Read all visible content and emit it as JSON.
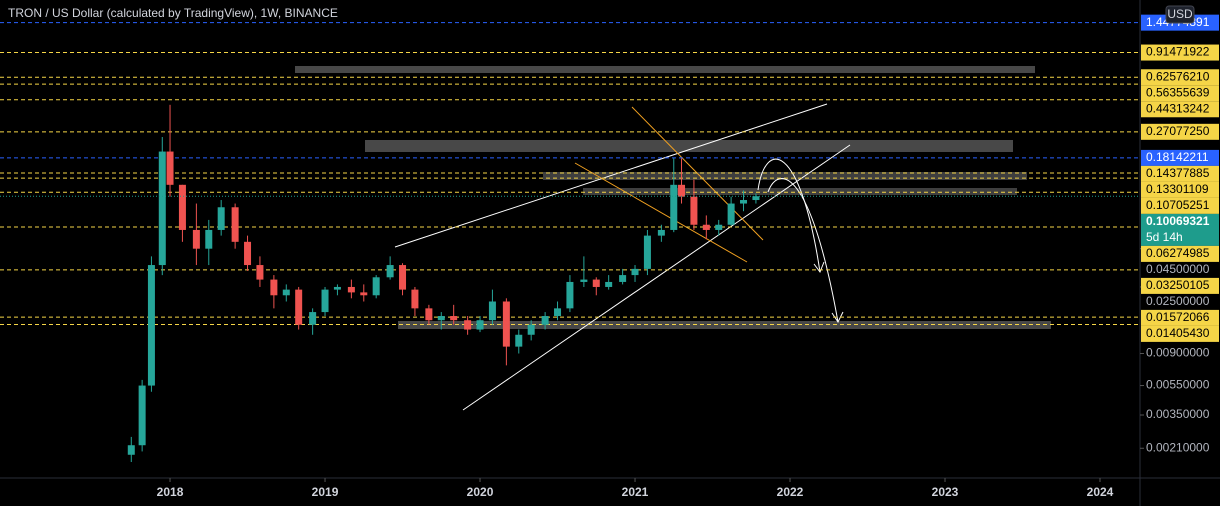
{
  "chart_data": {
    "type": "candlestick",
    "title": "TRON / US Dollar (calculated by TradingView), 1W, BINANCE",
    "currency": "USD",
    "log_scale": true,
    "up_color": "#26a69a",
    "down_color": "#ef5350",
    "x": [
      2017.75,
      2017.82,
      2017.88,
      2017.95,
      2018.0,
      2018.08,
      2018.17,
      2018.25,
      2018.33,
      2018.42,
      2018.5,
      2018.58,
      2018.67,
      2018.75,
      2018.83,
      2018.92,
      2019.0,
      2019.08,
      2019.17,
      2019.25,
      2019.33,
      2019.42,
      2019.5,
      2019.58,
      2019.67,
      2019.75,
      2019.83,
      2019.92,
      2020.0,
      2020.08,
      2020.17,
      2020.25,
      2020.33,
      2020.42,
      2020.5,
      2020.58,
      2020.67,
      2020.75,
      2020.83,
      2020.92,
      2021.0,
      2021.08,
      2021.17,
      2021.25,
      2021.3,
      2021.38,
      2021.46,
      2021.54,
      2021.62,
      2021.7,
      2021.78
    ],
    "open": [
      0.0019,
      0.0022,
      0.0055,
      0.035,
      0.2,
      0.12,
      0.06,
      0.045,
      0.06,
      0.085,
      0.05,
      0.035,
      0.028,
      0.022,
      0.024,
      0.014,
      0.017,
      0.024,
      0.025,
      0.023,
      0.022,
      0.029,
      0.035,
      0.024,
      0.018,
      0.015,
      0.016,
      0.015,
      0.013,
      0.015,
      0.02,
      0.01,
      0.012,
      0.014,
      0.016,
      0.018,
      0.027,
      0.028,
      0.025,
      0.027,
      0.03,
      0.033,
      0.055,
      0.06,
      0.12,
      0.1,
      0.065,
      0.06,
      0.065,
      0.09,
      0.095
    ],
    "high": [
      0.0025,
      0.006,
      0.04,
      0.25,
      0.41,
      0.12,
      0.09,
      0.07,
      0.095,
      0.09,
      0.055,
      0.04,
      0.03,
      0.026,
      0.025,
      0.018,
      0.025,
      0.026,
      0.028,
      0.026,
      0.03,
      0.04,
      0.036,
      0.025,
      0.019,
      0.017,
      0.019,
      0.016,
      0.016,
      0.024,
      0.021,
      0.013,
      0.015,
      0.017,
      0.02,
      0.03,
      0.04,
      0.029,
      0.03,
      0.033,
      0.035,
      0.06,
      0.065,
      0.18,
      0.18,
      0.13,
      0.075,
      0.07,
      0.1,
      0.11,
      0.105
    ],
    "low": [
      0.0017,
      0.002,
      0.005,
      0.03,
      0.1,
      0.05,
      0.035,
      0.035,
      0.055,
      0.045,
      0.032,
      0.025,
      0.018,
      0.02,
      0.013,
      0.012,
      0.016,
      0.022,
      0.021,
      0.02,
      0.021,
      0.028,
      0.022,
      0.016,
      0.014,
      0.013,
      0.014,
      0.012,
      0.0125,
      0.014,
      0.0075,
      0.009,
      0.011,
      0.013,
      0.015,
      0.017,
      0.025,
      0.022,
      0.024,
      0.026,
      0.027,
      0.03,
      0.05,
      0.058,
      0.09,
      0.06,
      0.052,
      0.055,
      0.064,
      0.08,
      0.09
    ],
    "close": [
      0.0022,
      0.0055,
      0.035,
      0.2,
      0.12,
      0.06,
      0.045,
      0.06,
      0.085,
      0.05,
      0.035,
      0.028,
      0.022,
      0.024,
      0.014,
      0.017,
      0.024,
      0.025,
      0.023,
      0.022,
      0.029,
      0.035,
      0.024,
      0.018,
      0.015,
      0.016,
      0.015,
      0.013,
      0.015,
      0.02,
      0.01,
      0.012,
      0.014,
      0.016,
      0.018,
      0.027,
      0.028,
      0.025,
      0.027,
      0.03,
      0.033,
      0.055,
      0.06,
      0.12,
      0.1,
      0.065,
      0.06,
      0.065,
      0.09,
      0.095,
      0.1007
    ],
    "xlim": [
      2016.903,
      2024.258
    ],
    "xticks": [
      2018,
      2019,
      2020,
      2021,
      2022,
      2023,
      2024
    ],
    "ylim": [
      0.00133,
      2.05
    ],
    "yticks": [
      {
        "value": 0.0021,
        "label": "0.00210000"
      },
      {
        "value": 0.0035,
        "label": "0.00350000"
      },
      {
        "value": 0.0055,
        "label": "0.00550000"
      },
      {
        "value": 0.009,
        "label": "0.00900000"
      },
      {
        "value": 0.025,
        "label": "0.02500000"
      },
      {
        "value": 0.045,
        "label": "0.04500000"
      }
    ],
    "levels": [
      {
        "value": 1.44774891,
        "label": "1.44774891",
        "color": "#2962ff"
      },
      {
        "value": 0.91471922,
        "label": "0.91471922",
        "color": "#f5d547"
      },
      {
        "value": 0.6257621,
        "label": "0.62576210",
        "color": "#f5d547"
      },
      {
        "value": 0.56355639,
        "label": "0.56355639",
        "color": "#f5d547"
      },
      {
        "value": 0.44313242,
        "label": "0.44313242",
        "color": "#f5d547"
      },
      {
        "value": 0.2707725,
        "label": "0.27077250",
        "color": "#f5d547"
      },
      {
        "value": 0.18142211,
        "label": "0.18142211",
        "color": "#2962ff"
      },
      {
        "value": 0.14377885,
        "label": "0.14377885",
        "color": "#f5d547"
      },
      {
        "value": 0.13301109,
        "label": "0.13301109",
        "color": "#f5d547"
      },
      {
        "value": 0.10705251,
        "label": "0.10705251",
        "color": "#f5d547"
      },
      {
        "value": 0.06274985,
        "label": "0.06274985",
        "color": "#f5d547"
      },
      {
        "value": 0.03250105,
        "label": "0.03250105",
        "color": "#f5d547"
      },
      {
        "value": 0.01572066,
        "label": "0.01572066",
        "color": "#f5d547"
      },
      {
        "value": 0.0140543,
        "label": "0.01405430",
        "color": "#f5d547"
      }
    ],
    "current_price": {
      "value": 0.10069321,
      "countdown": "5d 14h",
      "color": "#1e9c8c"
    }
  }
}
